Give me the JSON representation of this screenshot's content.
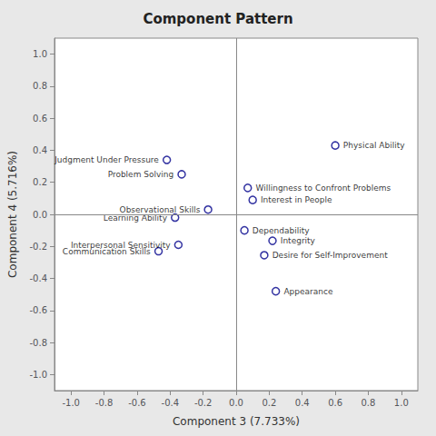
{
  "chart_data": {
    "type": "scatter",
    "title": "Component Pattern",
    "xlabel": "Component 3 (7.733%)",
    "ylabel": "Component 4 (5.716%)",
    "points": [
      {
        "label": "Physical Ability",
        "x": 0.6,
        "y": 0.43
      },
      {
        "label": "Judgment Under Pressure",
        "x": -0.42,
        "y": 0.34
      },
      {
        "label": "Problem Solving",
        "x": -0.33,
        "y": 0.25
      },
      {
        "label": "Willingness to Confront Problems",
        "x": 0.07,
        "y": 0.165
      },
      {
        "label": "Interest in People",
        "x": 0.1,
        "y": 0.09
      },
      {
        "label": "Observational Skills",
        "x": -0.17,
        "y": 0.03
      },
      {
        "label": "Learning Ability",
        "x": -0.37,
        "y": -0.02
      },
      {
        "label": "Interpersonal Sensitivity",
        "x": -0.35,
        "y": -0.19
      },
      {
        "label": "Dependability",
        "x": 0.05,
        "y": -0.1
      },
      {
        "label": "Integrity",
        "x": 0.22,
        "y": -0.165
      },
      {
        "label": "Communication Skills",
        "x": -0.47,
        "y": -0.23
      },
      {
        "label": "Desire for Self-Improvement",
        "x": 0.17,
        "y": -0.255
      },
      {
        "label": "Appearance",
        "x": 0.24,
        "y": -0.48
      }
    ],
    "color": "#00008B",
    "marker": "circle",
    "xlim": [
      -1.1,
      1.1
    ],
    "ylim": [
      -1.1,
      1.1
    ],
    "xticks": [
      {
        "value": -1.0,
        "label": "-1.0"
      },
      -0.8,
      -0.6,
      -0.4,
      -0.2,
      {
        "value": 0.0,
        "label": "0.0"
      },
      0.2,
      0.4,
      0.6,
      0.8,
      {
        "value": 1.0,
        "label": "1.0"
      }
    ],
    "yticks": [
      {
        "value": -1.0,
        "label": "-1.0"
      },
      -0.8,
      -0.6,
      -0.4,
      -0.2,
      {
        "value": 0.0,
        "label": "0.0"
      },
      0.2,
      0.4,
      0.6,
      0.8,
      {
        "value": 1.0,
        "label": "1.0"
      }
    ],
    "grid": false
  }
}
